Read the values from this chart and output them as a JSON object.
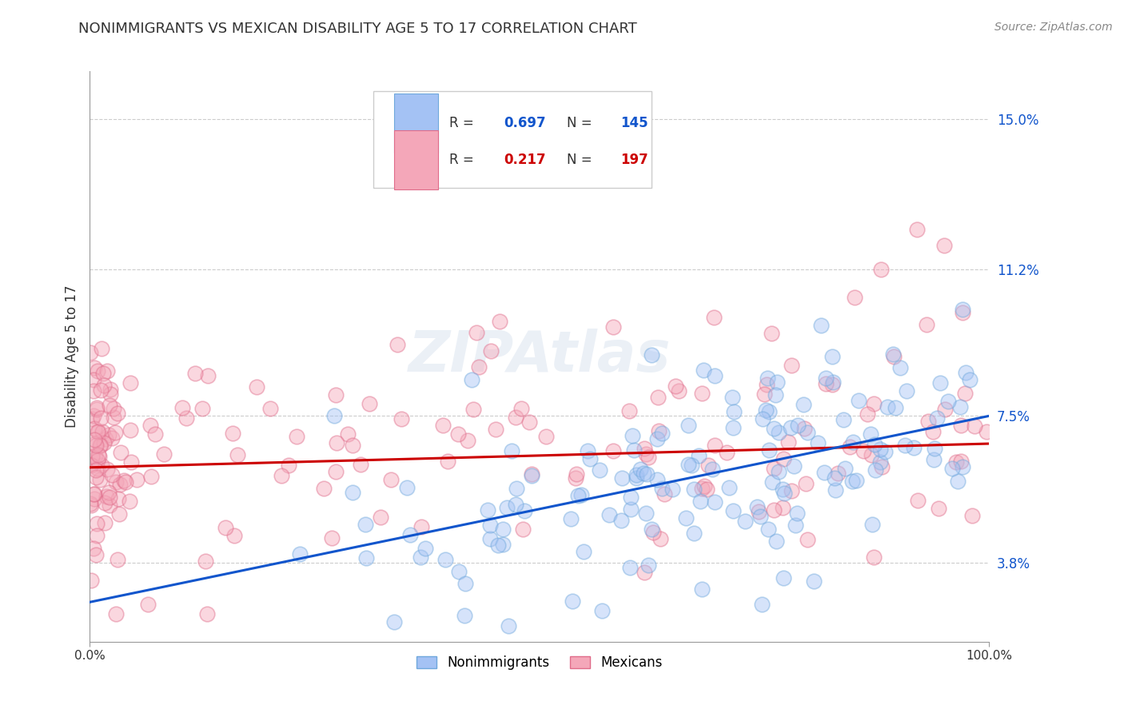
{
  "title": "NONIMMIGRANTS VS MEXICAN DISABILITY AGE 5 TO 17 CORRELATION CHART",
  "source": "Source: ZipAtlas.com",
  "ylabel_label": "Disability Age 5 to 17",
  "ytick_labels": [
    "3.8%",
    "7.5%",
    "11.2%",
    "15.0%"
  ],
  "ytick_values": [
    0.038,
    0.075,
    0.112,
    0.15
  ],
  "xlim": [
    0.0,
    1.0
  ],
  "ylim": [
    0.018,
    0.162
  ],
  "blue_R": "0.697",
  "blue_N": "145",
  "pink_R": "0.217",
  "pink_N": "197",
  "blue_scatter_color": "#a4c2f4",
  "pink_scatter_color": "#f4a7b9",
  "blue_edge_color": "#6fa8dc",
  "pink_edge_color": "#e06c8a",
  "blue_line_color": "#1155cc",
  "pink_line_color": "#cc0000",
  "legend_label_blue": "Nonimmigrants",
  "legend_label_pink": "Mexicans",
  "blue_trend_x": [
    0.0,
    1.0
  ],
  "blue_trend_y": [
    0.028,
    0.075
  ],
  "pink_trend_x": [
    0.0,
    1.0
  ],
  "pink_trend_y": [
    0.062,
    0.068
  ],
  "background_color": "#ffffff",
  "grid_color": "#cccccc",
  "title_color": "#333333",
  "source_color": "#888888",
  "watermark": "ZIPAtlas",
  "scatter_size": 180,
  "scatter_alpha": 0.45,
  "scatter_linewidth": 1.2
}
